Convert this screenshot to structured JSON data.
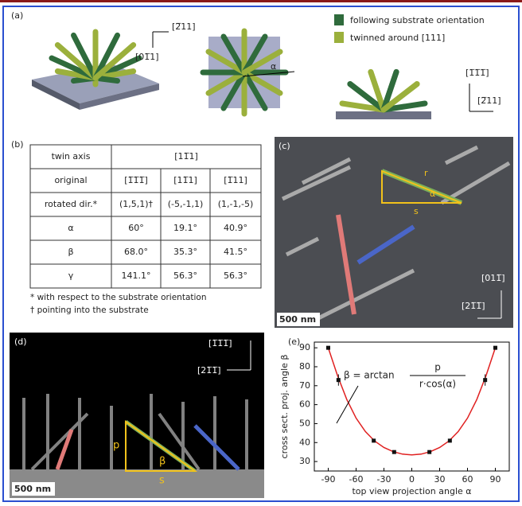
{
  "panel_a": {
    "label": "(a)",
    "legend": [
      {
        "name": "following substrate orientation",
        "color": "#2f6b3c"
      },
      {
        "name": "twinned around [111]",
        "color": "#9bb03c"
      }
    ],
    "dir_top_1": "[2̅11]",
    "dir_top_2": "[01̅1]",
    "angle": "α",
    "dir_side_1": "[1̅1̅1̅]",
    "dir_side_2": "[2̅11]"
  },
  "table": {
    "label": "(b)",
    "header": [
      "twin axis",
      "[11̅1]"
    ],
    "rows": [
      [
        "original",
        "[1̅1̅1̅]",
        "[11̅1]",
        "[1̅11]"
      ],
      [
        "rotated dir.*",
        "(1,5,1)†",
        "(-5,-1,1)",
        "(1,-1,-5)"
      ],
      [
        "α",
        "60°",
        "19.1°",
        "40.9°"
      ],
      [
        "β",
        "68.0°",
        "35.3°",
        "41.5°"
      ],
      [
        "γ",
        "141.1°",
        "56.3°",
        "56.3°"
      ]
    ],
    "notes": [
      "* with respect to the substrate orientation",
      "† pointing into the substrate"
    ]
  },
  "panel_c": {
    "label": "(c)",
    "r": "r",
    "alpha": "α",
    "s": "s",
    "scale": "500 nm",
    "dir_1": "[011̅]",
    "dir_2": "[21̅1̅]"
  },
  "panel_d": {
    "label": "(d)",
    "p": "p",
    "beta": "β",
    "s": "s",
    "scale": "500 nm",
    "dir_1": "[1̅1̅1̅]",
    "dir_2": "[21̅1̅]"
  },
  "chart_data": {
    "type": "scatter",
    "label": "(e)",
    "xlabel": "top view projection angle α",
    "ylabel": "cross sect. proj. angle β",
    "formula": "β = arctan",
    "formula_num": "p",
    "formula_den": "r·cos(α)",
    "x": [
      -90,
      -79,
      -41,
      -19,
      19,
      41,
      79,
      90
    ],
    "values": [
      90,
      73,
      41,
      35,
      35,
      41,
      73,
      90
    ],
    "errors": [
      null,
      3,
      null,
      null,
      null,
      null,
      3,
      null
    ],
    "color": "#111",
    "curve": {
      "x": [
        -90,
        -80,
        -70,
        -60,
        -50,
        -40,
        -30,
        -20,
        -10,
        0,
        10,
        20,
        30,
        40,
        50,
        60,
        70,
        80,
        90
      ],
      "values": [
        90,
        75.3,
        62.7,
        52.9,
        45.8,
        40.8,
        37.4,
        35.2,
        33.9,
        33.5,
        33.9,
        35.2,
        37.4,
        40.8,
        45.8,
        52.9,
        62.7,
        75.3,
        90
      ],
      "color": "#e02020"
    },
    "xlim": [
      -105,
      105
    ],
    "ylim": [
      25,
      93
    ],
    "xticks": [
      -90,
      -60,
      -30,
      0,
      30,
      60,
      90
    ],
    "yticks": [
      30,
      40,
      50,
      60,
      70,
      80,
      90
    ]
  }
}
